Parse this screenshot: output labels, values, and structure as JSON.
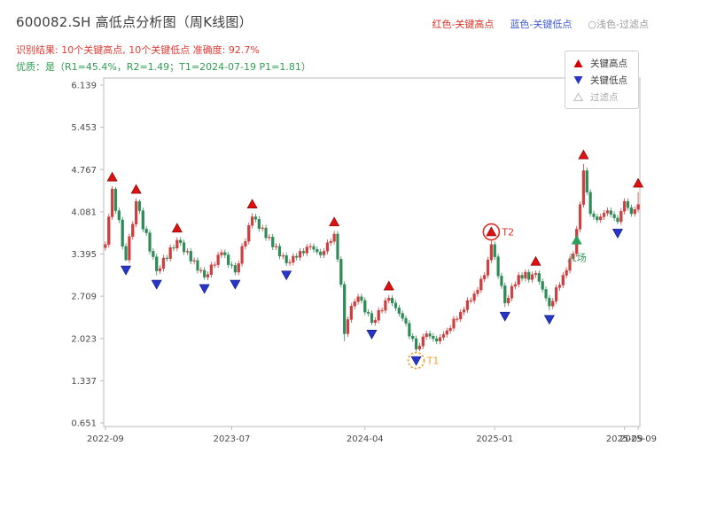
{
  "header": {
    "title": "600082.SH 高低点分析图（周K线图）",
    "subtitle_result": "识别结果: 10个关键高点, 10个关键低点  准确度: 92.7%",
    "result_color": "#e03a32",
    "subtitle_quality": "优质：是（R1=45.4%，R2=1.49；T1=2024-07-19 P1=1.81）",
    "quality_color": "#2f9e50",
    "top_legend": [
      {
        "label": "红色-关键高点",
        "color": "#d93025"
      },
      {
        "label": "蓝色-关键低点",
        "color": "#3f5bd5"
      },
      {
        "label": "○浅色-过滤点",
        "color": "#9a9a9a"
      }
    ]
  },
  "legend_box": {
    "items": [
      {
        "label": "关键高点",
        "marker": "triangle-up",
        "color": "#d40000",
        "text_color": "#3a3a3a"
      },
      {
        "label": "关键低点",
        "marker": "triangle-down",
        "color": "#2736c9",
        "text_color": "#3a3a3a"
      },
      {
        "label": "过滤点",
        "marker": "triangle-up-hollow",
        "color": "#c4c4c4",
        "text_color": "#ababab"
      }
    ]
  },
  "chart_data": {
    "type": "candlestick",
    "title": "600082.SH 高低点分析图（周K线图）",
    "grid": false,
    "ylim": [
      0.59,
      6.25
    ],
    "y_ticks": [
      0.651,
      1.337,
      2.023,
      2.709,
      3.395,
      4.081,
      4.767,
      5.453,
      6.139
    ],
    "x_ticks": [
      {
        "index": 0,
        "label": "2022-09"
      },
      {
        "index": 37,
        "label": "2023-07"
      },
      {
        "index": 76,
        "label": "2024-04"
      },
      {
        "index": 114,
        "label": "2025-01"
      },
      {
        "index": 152,
        "label": "2025-09"
      },
      {
        "index": 156,
        "label": "2025-09"
      }
    ],
    "up_color": "#cf3e3e",
    "down_color": "#2e8b57",
    "high_marker_color": "#dd1111",
    "low_marker_color": "#2736c9",
    "filtered_marker_color": "#c8c8c8",
    "axis_color": "#bbbbbb",
    "tick_text_color": "#4a4a4a",
    "candles": [
      [
        3.5,
        3.6,
        3.45,
        3.55
      ],
      [
        3.55,
        4.05,
        3.5,
        4.0
      ],
      [
        4.0,
        4.5,
        3.95,
        4.45
      ],
      [
        4.45,
        4.48,
        4.05,
        4.1
      ],
      [
        4.1,
        4.15,
        3.9,
        3.95
      ],
      [
        3.95,
        4.0,
        3.47,
        3.52
      ],
      [
        3.52,
        3.57,
        3.28,
        3.3
      ],
      [
        3.3,
        3.73,
        3.25,
        3.68
      ],
      [
        3.68,
        3.93,
        3.63,
        3.88
      ],
      [
        3.88,
        4.3,
        3.83,
        4.25
      ],
      [
        4.25,
        4.28,
        4.05,
        4.1
      ],
      [
        4.1,
        4.15,
        3.75,
        3.8
      ],
      [
        3.8,
        3.85,
        3.69,
        3.74
      ],
      [
        3.74,
        3.79,
        3.39,
        3.44
      ],
      [
        3.44,
        3.49,
        3.3,
        3.35
      ],
      [
        3.35,
        3.4,
        3.05,
        3.12
      ],
      [
        3.12,
        3.21,
        3.07,
        3.16
      ],
      [
        3.16,
        3.38,
        3.11,
        3.33
      ],
      [
        3.33,
        3.38,
        3.27,
        3.32
      ],
      [
        3.32,
        3.55,
        3.27,
        3.5
      ],
      [
        3.5,
        3.55,
        3.44,
        3.49
      ],
      [
        3.49,
        3.67,
        3.44,
        3.62
      ],
      [
        3.62,
        3.67,
        3.53,
        3.58
      ],
      [
        3.58,
        3.63,
        3.38,
        3.43
      ],
      [
        3.43,
        3.49,
        3.38,
        3.44
      ],
      [
        3.44,
        3.49,
        3.23,
        3.28
      ],
      [
        3.28,
        3.34,
        3.23,
        3.29
      ],
      [
        3.29,
        3.34,
        3.08,
        3.13
      ],
      [
        3.13,
        3.18,
        3.08,
        3.13
      ],
      [
        3.13,
        3.18,
        2.98,
        3.02
      ],
      [
        3.02,
        3.11,
        2.97,
        3.06
      ],
      [
        3.06,
        3.27,
        3.01,
        3.22
      ],
      [
        3.22,
        3.27,
        3.17,
        3.22
      ],
      [
        3.22,
        3.43,
        3.17,
        3.38
      ],
      [
        3.38,
        3.47,
        3.33,
        3.42
      ],
      [
        3.42,
        3.47,
        3.33,
        3.38
      ],
      [
        3.38,
        3.43,
        3.17,
        3.22
      ],
      [
        3.22,
        3.27,
        3.16,
        3.21
      ],
      [
        3.21,
        3.26,
        3.05,
        3.1
      ],
      [
        3.1,
        3.29,
        3.05,
        3.24
      ],
      [
        3.24,
        3.57,
        3.19,
        3.52
      ],
      [
        3.52,
        3.65,
        3.47,
        3.6
      ],
      [
        3.6,
        3.91,
        3.55,
        3.86
      ],
      [
        3.86,
        4.06,
        3.81,
        4.0
      ],
      [
        4.0,
        4.05,
        3.91,
        3.96
      ],
      [
        3.96,
        4.01,
        3.76,
        3.81
      ],
      [
        3.81,
        3.87,
        3.76,
        3.82
      ],
      [
        3.82,
        3.87,
        3.61,
        3.66
      ],
      [
        3.66,
        3.72,
        3.61,
        3.67
      ],
      [
        3.67,
        3.72,
        3.46,
        3.51
      ],
      [
        3.51,
        3.57,
        3.46,
        3.52
      ],
      [
        3.52,
        3.57,
        3.31,
        3.36
      ],
      [
        3.36,
        3.42,
        3.31,
        3.37
      ],
      [
        3.37,
        3.42,
        3.2,
        3.25
      ],
      [
        3.25,
        3.31,
        3.2,
        3.26
      ],
      [
        3.26,
        3.41,
        3.21,
        3.36
      ],
      [
        3.36,
        3.41,
        3.29,
        3.34
      ],
      [
        3.34,
        3.49,
        3.29,
        3.44
      ],
      [
        3.44,
        3.49,
        3.36,
        3.41
      ],
      [
        3.41,
        3.56,
        3.36,
        3.51
      ],
      [
        3.51,
        3.57,
        3.46,
        3.52
      ],
      [
        3.52,
        3.57,
        3.42,
        3.47
      ],
      [
        3.47,
        3.52,
        3.38,
        3.43
      ],
      [
        3.43,
        3.48,
        3.33,
        3.38
      ],
      [
        3.38,
        3.49,
        3.33,
        3.44
      ],
      [
        3.44,
        3.63,
        3.39,
        3.58
      ],
      [
        3.58,
        3.65,
        3.53,
        3.6
      ],
      [
        3.6,
        3.77,
        3.55,
        3.72
      ],
      [
        3.72,
        3.77,
        3.26,
        3.31
      ],
      [
        3.31,
        3.36,
        2.85,
        2.9
      ],
      [
        2.9,
        2.95,
        1.98,
        2.1
      ],
      [
        2.1,
        2.38,
        2.05,
        2.33
      ],
      [
        2.33,
        2.6,
        2.28,
        2.55
      ],
      [
        2.55,
        2.67,
        2.5,
        2.62
      ],
      [
        2.62,
        2.75,
        2.57,
        2.7
      ],
      [
        2.7,
        2.75,
        2.59,
        2.64
      ],
      [
        2.64,
        2.69,
        2.4,
        2.45
      ],
      [
        2.45,
        2.5,
        2.38,
        2.43
      ],
      [
        2.43,
        2.48,
        2.24,
        2.28
      ],
      [
        2.28,
        2.37,
        2.23,
        2.32
      ],
      [
        2.32,
        2.53,
        2.27,
        2.48
      ],
      [
        2.48,
        2.53,
        2.43,
        2.48
      ],
      [
        2.48,
        2.69,
        2.43,
        2.64
      ],
      [
        2.64,
        2.73,
        2.59,
        2.68
      ],
      [
        2.68,
        2.73,
        2.55,
        2.6
      ],
      [
        2.6,
        2.65,
        2.47,
        2.52
      ],
      [
        2.52,
        2.57,
        2.38,
        2.43
      ],
      [
        2.43,
        2.48,
        2.3,
        2.35
      ],
      [
        2.35,
        2.4,
        2.22,
        2.27
      ],
      [
        2.27,
        2.32,
        2.01,
        2.06
      ],
      [
        2.06,
        2.11,
        1.97,
        2.02
      ],
      [
        2.02,
        2.07,
        1.81,
        1.85
      ],
      [
        1.85,
        1.95,
        1.82,
        1.9
      ],
      [
        1.9,
        2.1,
        1.85,
        2.05
      ],
      [
        2.05,
        2.15,
        2.0,
        2.1
      ],
      [
        2.1,
        2.15,
        2.01,
        2.06
      ],
      [
        2.06,
        2.11,
        1.97,
        2.02
      ],
      [
        2.02,
        2.07,
        1.93,
        1.98
      ],
      [
        1.98,
        2.09,
        1.93,
        2.04
      ],
      [
        2.04,
        2.14,
        1.99,
        2.09
      ],
      [
        2.09,
        2.2,
        2.04,
        2.15
      ],
      [
        2.15,
        2.24,
        2.1,
        2.19
      ],
      [
        2.19,
        2.39,
        2.14,
        2.34
      ],
      [
        2.34,
        2.39,
        2.29,
        2.34
      ],
      [
        2.34,
        2.5,
        2.29,
        2.45
      ],
      [
        2.45,
        2.54,
        2.4,
        2.49
      ],
      [
        2.49,
        2.69,
        2.44,
        2.64
      ],
      [
        2.64,
        2.69,
        2.59,
        2.64
      ],
      [
        2.64,
        2.8,
        2.59,
        2.75
      ],
      [
        2.75,
        2.86,
        2.7,
        2.81
      ],
      [
        2.81,
        3.04,
        2.76,
        2.99
      ],
      [
        2.99,
        3.1,
        2.94,
        3.05
      ],
      [
        3.05,
        3.35,
        3.0,
        3.3
      ],
      [
        3.3,
        3.61,
        3.25,
        3.55
      ],
      [
        3.55,
        3.6,
        3.3,
        3.35
      ],
      [
        3.35,
        3.4,
        2.99,
        3.04
      ],
      [
        3.04,
        3.09,
        2.83,
        2.88
      ],
      [
        2.88,
        2.93,
        2.53,
        2.6
      ],
      [
        2.6,
        2.73,
        2.55,
        2.68
      ],
      [
        2.68,
        2.92,
        2.63,
        2.87
      ],
      [
        2.87,
        2.95,
        2.82,
        2.9
      ],
      [
        2.9,
        3.1,
        2.85,
        3.05
      ],
      [
        3.05,
        3.1,
        2.95,
        3.0
      ],
      [
        3.0,
        3.15,
        2.95,
        3.1
      ],
      [
        3.1,
        3.15,
        2.93,
        2.98
      ],
      [
        2.98,
        3.11,
        2.93,
        3.06
      ],
      [
        3.06,
        3.13,
        3.01,
        3.08
      ],
      [
        3.08,
        3.13,
        2.9,
        2.95
      ],
      [
        2.95,
        3.0,
        2.77,
        2.82
      ],
      [
        2.82,
        2.87,
        2.63,
        2.68
      ],
      [
        2.68,
        2.73,
        2.48,
        2.55
      ],
      [
        2.55,
        2.68,
        2.5,
        2.63
      ],
      [
        2.63,
        2.9,
        2.58,
        2.85
      ],
      [
        2.85,
        2.94,
        2.8,
        2.89
      ],
      [
        2.89,
        3.1,
        2.84,
        3.05
      ],
      [
        3.05,
        3.18,
        3.0,
        3.13
      ],
      [
        3.13,
        3.37,
        3.08,
        3.32
      ],
      [
        3.32,
        3.45,
        3.27,
        3.4
      ],
      [
        3.4,
        3.85,
        3.35,
        3.8
      ],
      [
        3.8,
        4.25,
        3.75,
        4.2
      ],
      [
        4.2,
        4.86,
        4.15,
        4.75
      ],
      [
        4.75,
        4.8,
        4.35,
        4.4
      ],
      [
        4.4,
        4.45,
        4.0,
        4.05
      ],
      [
        4.05,
        4.1,
        3.95,
        4.0
      ],
      [
        4.0,
        4.05,
        3.9,
        3.95
      ],
      [
        3.95,
        4.05,
        3.9,
        4.0
      ],
      [
        4.0,
        4.11,
        3.95,
        4.06
      ],
      [
        4.06,
        4.15,
        4.01,
        4.1
      ],
      [
        4.1,
        4.15,
        3.99,
        4.04
      ],
      [
        4.04,
        4.09,
        3.93,
        3.98
      ],
      [
        3.98,
        4.03,
        3.88,
        3.92
      ],
      [
        3.92,
        4.14,
        3.87,
        4.09
      ],
      [
        4.09,
        4.3,
        4.04,
        4.25
      ],
      [
        4.25,
        4.3,
        4.1,
        4.15
      ],
      [
        4.15,
        4.2,
        4.0,
        4.05
      ],
      [
        4.05,
        4.17,
        4.0,
        4.12
      ],
      [
        4.12,
        4.4,
        4.07,
        4.2
      ]
    ],
    "key_highs": [
      2,
      9,
      21,
      43,
      67,
      83,
      113,
      126,
      140,
      156
    ],
    "key_lows": [
      6,
      15,
      29,
      38,
      53,
      78,
      91,
      117,
      130,
      150
    ],
    "annotations": [
      {
        "id": "t2",
        "label": "T2",
        "type": "circle-high",
        "index": 113,
        "color": "#d93025"
      },
      {
        "id": "t1",
        "label": "T1",
        "type": "circle-low",
        "index": 91,
        "color": "#f0a030"
      },
      {
        "id": "entry",
        "label": "入场",
        "type": "entry",
        "index": 138,
        "price": 3.62,
        "label_price": 3.28,
        "color": "#2e9e5b"
      }
    ]
  }
}
